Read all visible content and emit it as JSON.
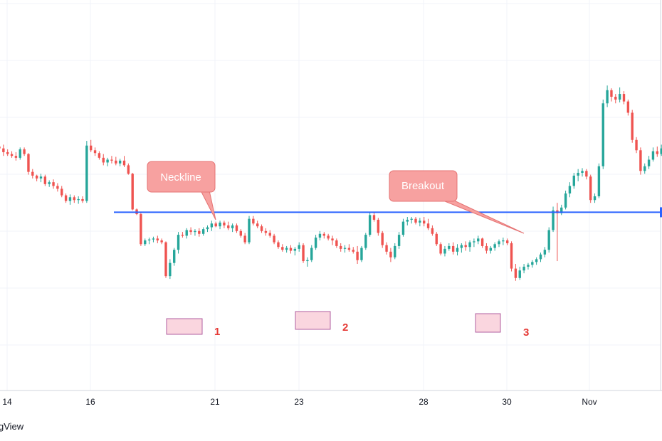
{
  "brand_text": "gView",
  "colors": {
    "up": "#26a69a",
    "down": "#ef5350",
    "neckline": "#2962ff",
    "callout_fill": "#f7a1a0",
    "callout_stroke": "#e57373",
    "bottom_box_fill": "#f8c8d4",
    "bottom_box_stroke": "#b05fa0",
    "bottom_label": "#e53935",
    "grid": "#f0f3fa",
    "axis_line": "#d1d4dc"
  },
  "chart_data": {
    "type": "candlestick",
    "title": "",
    "x_ticks": [
      "14",
      "16",
      "21",
      "23",
      "28",
      "30",
      "Nov"
    ],
    "grid": true,
    "neckline": {
      "price": 0.3
    },
    "annotations": {
      "callouts": [
        "Neckline",
        "Breakout"
      ],
      "bottoms": [
        "1",
        "2",
        "3"
      ]
    },
    "candles": [
      [
        1.0,
        1.02,
        0.93,
        0.98
      ],
      [
        0.98,
        1.02,
        0.9,
        0.94
      ],
      [
        0.94,
        0.97,
        0.9,
        0.92
      ],
      [
        0.92,
        0.95,
        0.88,
        0.9
      ],
      [
        0.9,
        0.94,
        0.85,
        0.88
      ],
      [
        0.88,
        0.99,
        0.86,
        0.97
      ],
      [
        0.97,
        0.99,
        0.9,
        0.92
      ],
      [
        0.92,
        0.93,
        0.7,
        0.73
      ],
      [
        0.73,
        0.76,
        0.66,
        0.69
      ],
      [
        0.69,
        0.7,
        0.63,
        0.66
      ],
      [
        0.66,
        0.71,
        0.62,
        0.68
      ],
      [
        0.68,
        0.7,
        0.58,
        0.6
      ],
      [
        0.6,
        0.64,
        0.57,
        0.62
      ],
      [
        0.62,
        0.65,
        0.55,
        0.58
      ],
      [
        0.58,
        0.61,
        0.52,
        0.55
      ],
      [
        0.55,
        0.58,
        0.46,
        0.48
      ],
      [
        0.48,
        0.5,
        0.4,
        0.42
      ],
      [
        0.42,
        0.49,
        0.38,
        0.46
      ],
      [
        0.46,
        0.48,
        0.4,
        0.43
      ],
      [
        0.43,
        0.47,
        0.39,
        0.44
      ],
      [
        0.44,
        0.47,
        0.4,
        0.42
      ],
      [
        0.42,
        1.06,
        0.4,
        1.01
      ],
      [
        1.01,
        1.07,
        0.94,
        0.96
      ],
      [
        0.96,
        0.99,
        0.9,
        0.93
      ],
      [
        0.93,
        0.95,
        0.86,
        0.88
      ],
      [
        0.88,
        0.92,
        0.8,
        0.83
      ],
      [
        0.83,
        0.88,
        0.79,
        0.86
      ],
      [
        0.86,
        0.9,
        0.82,
        0.85
      ],
      [
        0.85,
        0.89,
        0.8,
        0.82
      ],
      [
        0.82,
        0.87,
        0.79,
        0.85
      ],
      [
        0.85,
        0.9,
        0.78,
        0.8
      ],
      [
        0.8,
        0.82,
        0.7,
        0.71
      ],
      [
        0.71,
        0.72,
        0.32,
        0.33
      ],
      [
        0.33,
        0.34,
        0.27,
        0.28
      ],
      [
        0.28,
        0.3,
        -0.06,
        -0.04
      ],
      [
        -0.04,
        0.02,
        -0.06,
        0.0
      ],
      [
        0.0,
        0.03,
        -0.04,
        0.01
      ],
      [
        0.01,
        0.04,
        -0.02,
        0.02
      ],
      [
        0.02,
        0.05,
        -0.03,
        0.0
      ],
      [
        0.0,
        0.02,
        -0.04,
        -0.02
      ],
      [
        -0.02,
        -0.01,
        -0.4,
        -0.38
      ],
      [
        -0.38,
        -0.2,
        -0.41,
        -0.24
      ],
      [
        -0.24,
        -0.08,
        -0.27,
        -0.1
      ],
      [
        -0.1,
        0.09,
        -0.14,
        0.06
      ],
      [
        0.06,
        0.09,
        0.03,
        0.05
      ],
      [
        0.05,
        0.13,
        0.02,
        0.11
      ],
      [
        0.11,
        0.14,
        0.06,
        0.09
      ],
      [
        0.09,
        0.12,
        0.05,
        0.1
      ],
      [
        0.1,
        0.13,
        0.04,
        0.07
      ],
      [
        0.07,
        0.14,
        0.05,
        0.12
      ],
      [
        0.12,
        0.16,
        0.09,
        0.14
      ],
      [
        0.14,
        0.21,
        0.1,
        0.18
      ],
      [
        0.18,
        0.2,
        0.14,
        0.15
      ],
      [
        0.15,
        0.21,
        0.12,
        0.19
      ],
      [
        0.19,
        0.21,
        0.13,
        0.16
      ],
      [
        0.16,
        0.2,
        0.11,
        0.13
      ],
      [
        0.13,
        0.18,
        0.09,
        0.16
      ],
      [
        0.16,
        0.18,
        0.08,
        0.1
      ],
      [
        0.1,
        0.12,
        0.03,
        0.05
      ],
      [
        0.05,
        0.08,
        -0.04,
        -0.02
      ],
      [
        -0.02,
        0.26,
        -0.04,
        0.23
      ],
      [
        0.23,
        0.26,
        0.16,
        0.18
      ],
      [
        0.18,
        0.21,
        0.13,
        0.15
      ],
      [
        0.15,
        0.17,
        0.08,
        0.1
      ],
      [
        0.1,
        0.13,
        0.05,
        0.08
      ],
      [
        0.08,
        0.11,
        0.03,
        0.05
      ],
      [
        0.05,
        0.07,
        -0.04,
        -0.02
      ],
      [
        -0.02,
        0.0,
        -0.09,
        -0.07
      ],
      [
        -0.07,
        -0.04,
        -0.12,
        -0.1
      ],
      [
        -0.1,
        -0.06,
        -0.13,
        -0.08
      ],
      [
        -0.08,
        -0.05,
        -0.14,
        -0.11
      ],
      [
        -0.11,
        -0.07,
        -0.16,
        -0.09
      ],
      [
        -0.09,
        -0.02,
        -0.12,
        -0.05
      ],
      [
        -0.05,
        -0.03,
        -0.24,
        -0.22
      ],
      [
        -0.22,
        -0.18,
        -0.28,
        -0.21
      ],
      [
        -0.21,
        -0.05,
        -0.23,
        -0.08
      ],
      [
        -0.08,
        0.06,
        -0.1,
        0.03
      ],
      [
        0.03,
        0.1,
        0.0,
        0.07
      ],
      [
        0.07,
        0.09,
        0.02,
        0.05
      ],
      [
        0.05,
        0.07,
        0.0,
        0.02
      ],
      [
        0.02,
        0.05,
        -0.05,
        0.0
      ],
      [
        0.0,
        0.02,
        -0.08,
        -0.06
      ],
      [
        -0.06,
        -0.03,
        -0.12,
        -0.09
      ],
      [
        -0.09,
        -0.05,
        -0.13,
        -0.08
      ],
      [
        -0.08,
        -0.04,
        -0.12,
        -0.1
      ],
      [
        -0.1,
        -0.07,
        -0.14,
        -0.12
      ],
      [
        -0.12,
        -0.06,
        -0.25,
        -0.21
      ],
      [
        -0.21,
        -0.06,
        -0.23,
        -0.08
      ],
      [
        -0.08,
        0.08,
        -0.1,
        0.06
      ],
      [
        0.06,
        0.3,
        0.04,
        0.27
      ],
      [
        0.27,
        0.3,
        0.2,
        0.22
      ],
      [
        0.22,
        0.24,
        0.05,
        0.08
      ],
      [
        0.08,
        0.1,
        -0.08,
        -0.05
      ],
      [
        -0.05,
        -0.02,
        -0.15,
        -0.12
      ],
      [
        -0.12,
        -0.08,
        -0.23,
        -0.18
      ],
      [
        -0.18,
        -0.03,
        -0.2,
        -0.06
      ],
      [
        -0.06,
        0.09,
        -0.09,
        0.06
      ],
      [
        0.06,
        0.23,
        0.04,
        0.2
      ],
      [
        0.2,
        0.25,
        0.16,
        0.22
      ],
      [
        0.22,
        0.25,
        0.18,
        0.23
      ],
      [
        0.23,
        0.25,
        0.17,
        0.19
      ],
      [
        0.19,
        0.24,
        0.15,
        0.21
      ],
      [
        0.21,
        0.25,
        0.15,
        0.18
      ],
      [
        0.18,
        0.23,
        0.11,
        0.13
      ],
      [
        0.13,
        0.16,
        0.05,
        0.07
      ],
      [
        0.07,
        0.09,
        -0.06,
        -0.04
      ],
      [
        -0.04,
        -0.02,
        -0.16,
        -0.14
      ],
      [
        -0.14,
        -0.06,
        -0.17,
        -0.09
      ],
      [
        -0.09,
        -0.03,
        -0.11,
        -0.06
      ],
      [
        -0.06,
        -0.02,
        -0.15,
        -0.12
      ],
      [
        -0.12,
        -0.04,
        -0.16,
        -0.08
      ],
      [
        -0.08,
        -0.03,
        -0.13,
        -0.05
      ],
      [
        -0.05,
        -0.01,
        -0.11,
        -0.07
      ],
      [
        -0.07,
        0.0,
        -0.12,
        -0.02
      ],
      [
        -0.02,
        0.02,
        -0.07,
        -0.01
      ],
      [
        -0.01,
        0.05,
        -0.04,
        0.02
      ],
      [
        0.02,
        0.03,
        -0.08,
        -0.06
      ],
      [
        -0.06,
        -0.03,
        -0.14,
        -0.11
      ],
      [
        -0.11,
        -0.06,
        -0.14,
        -0.08
      ],
      [
        -0.08,
        -0.02,
        -0.11,
        -0.04
      ],
      [
        -0.04,
        0.01,
        -0.07,
        -0.01
      ],
      [
        -0.01,
        0.03,
        -0.05,
        0.0
      ],
      [
        0.0,
        0.02,
        -0.05,
        -0.03
      ],
      [
        -0.03,
        -0.01,
        -0.33,
        -0.3
      ],
      [
        -0.3,
        -0.25,
        -0.43,
        -0.4
      ],
      [
        -0.4,
        -0.28,
        -0.42,
        -0.32
      ],
      [
        -0.32,
        -0.25,
        -0.35,
        -0.28
      ],
      [
        -0.28,
        -0.24,
        -0.31,
        -0.26
      ],
      [
        -0.26,
        -0.21,
        -0.29,
        -0.23
      ],
      [
        -0.23,
        -0.18,
        -0.26,
        -0.2
      ],
      [
        -0.2,
        -0.13,
        -0.23,
        -0.15
      ],
      [
        -0.15,
        -0.07,
        -0.18,
        -0.1
      ],
      [
        -0.1,
        0.14,
        -0.13,
        0.11
      ],
      [
        0.11,
        0.36,
        0.09,
        0.32
      ],
      [
        0.32,
        0.4,
        -0.22,
        0.29
      ],
      [
        0.29,
        0.38,
        0.27,
        0.35
      ],
      [
        0.35,
        0.53,
        0.33,
        0.5
      ],
      [
        0.5,
        0.62,
        0.46,
        0.58
      ],
      [
        0.58,
        0.72,
        0.55,
        0.69
      ],
      [
        0.69,
        0.76,
        0.63,
        0.72
      ],
      [
        0.72,
        0.77,
        0.68,
        0.74
      ],
      [
        0.74,
        0.76,
        0.65,
        0.68
      ],
      [
        0.68,
        0.7,
        0.4,
        0.43
      ],
      [
        0.43,
        0.5,
        0.4,
        0.47
      ],
      [
        0.47,
        0.82,
        0.45,
        0.79
      ],
      [
        0.79,
        1.5,
        0.76,
        1.46
      ],
      [
        1.46,
        1.65,
        1.42,
        1.6
      ],
      [
        1.6,
        1.62,
        1.48,
        1.53
      ],
      [
        1.53,
        1.56,
        1.46,
        1.5
      ],
      [
        1.5,
        1.63,
        1.47,
        1.56
      ],
      [
        1.56,
        1.59,
        1.45,
        1.48
      ],
      [
        1.48,
        1.5,
        1.33,
        1.36
      ],
      [
        1.36,
        1.39,
        1.04,
        1.07
      ],
      [
        1.07,
        1.1,
        0.93,
        0.96
      ],
      [
        0.96,
        0.99,
        0.7,
        0.74
      ],
      [
        0.74,
        0.82,
        0.71,
        0.79
      ],
      [
        0.79,
        0.9,
        0.76,
        0.86
      ],
      [
        0.86,
        0.99,
        0.84,
        0.95
      ],
      [
        0.95,
        1.0,
        0.89,
        0.92
      ],
      [
        0.92,
        1.02,
        0.9,
        0.98
      ],
      [
        0.98,
        1.04,
        0.93,
        0.96
      ],
      [
        0.96,
        1.0,
        0.89,
        0.93
      ],
      [
        0.93,
        1.05,
        0.91,
        1.02
      ],
      [
        1.02,
        1.14,
        1.0,
        1.11
      ],
      [
        1.11,
        1.19,
        1.05,
        1.08
      ],
      [
        1.08,
        1.12,
        0.98,
        1.01
      ],
      [
        1.01,
        1.12,
        0.99,
        1.08
      ]
    ]
  }
}
